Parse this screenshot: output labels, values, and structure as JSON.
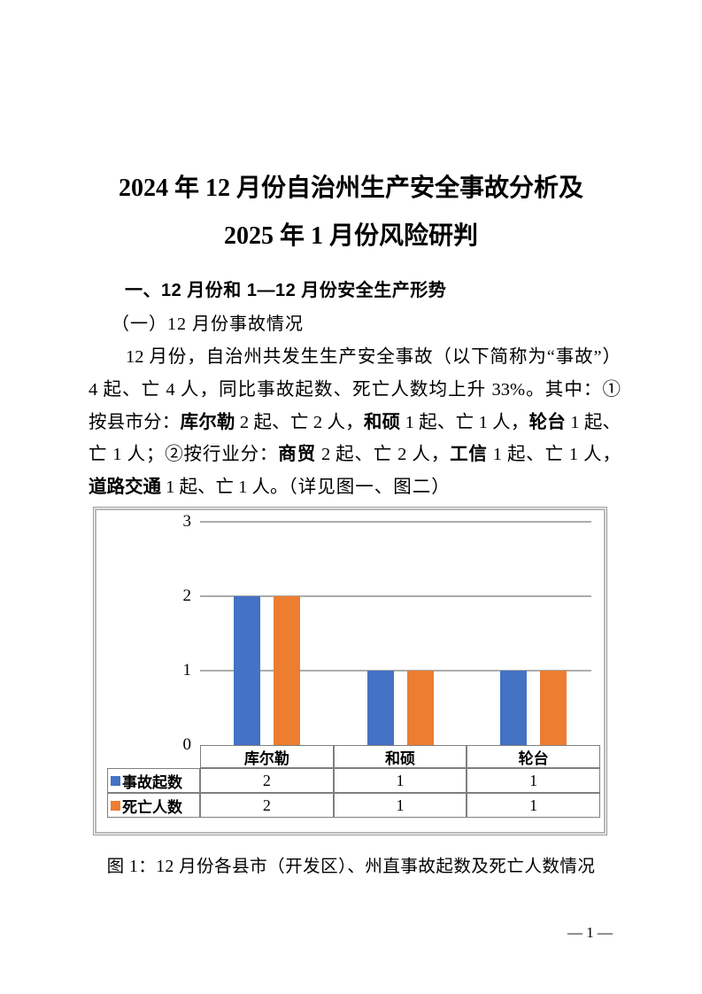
{
  "title": {
    "line1": "2024 年 12 月份自治州生产安全事故分析及",
    "line2": "2025 年 1 月份风险研判"
  },
  "sections": {
    "heading1": "一、12 月份和 1—12 月份安全生产形势",
    "heading2": "（一）12 月份事故情况"
  },
  "paragraph": {
    "lines": [
      {
        "indent": true,
        "full": true,
        "runs": [
          {
            "t": "12 月份，自治州共发生生产安全事故（以下简称为“事故”）"
          }
        ]
      },
      {
        "full": true,
        "runs": [
          {
            "t": "4 起、亡 4 人，同比事故起数、死亡人数均上升 33%。其中：①"
          }
        ]
      },
      {
        "full": true,
        "runs": [
          {
            "t": "按县市分："
          },
          {
            "t": "库尔勒",
            "b": true
          },
          {
            "t": " 2 起、亡 2 人，"
          },
          {
            "t": "和硕",
            "b": true
          },
          {
            "t": " 1 起、亡 1 人，"
          },
          {
            "t": "轮台",
            "b": true
          },
          {
            "t": " 1 起、"
          }
        ]
      },
      {
        "full": true,
        "runs": [
          {
            "t": "亡 1 人；②按行业分："
          },
          {
            "t": "商贸",
            "b": true
          },
          {
            "t": " 2 起、亡 2 人，"
          },
          {
            "t": "工信",
            "b": true
          },
          {
            "t": " 1 起、亡 1 人，"
          }
        ]
      },
      {
        "full": false,
        "runs": [
          {
            "t": "道路交通",
            "b": true
          },
          {
            "t": " 1 起、亡 1 人。"
          },
          {
            "t": "（详见图一、图二）",
            "k": true
          }
        ]
      }
    ]
  },
  "chart_data": {
    "type": "bar",
    "categories": [
      "库尔勒",
      "和硕",
      "轮台"
    ],
    "series": [
      {
        "name": "事故起数",
        "color": "#4472C4",
        "values": [
          2,
          1,
          1
        ]
      },
      {
        "name": "死亡人数",
        "color": "#ED7D31",
        "values": [
          2,
          1,
          1
        ]
      }
    ],
    "title": "",
    "xlabel": "",
    "ylabel": "",
    "ylim": [
      0,
      3
    ],
    "yticks": [
      3,
      2,
      1,
      0
    ],
    "grid": true,
    "legend_position": "data-table-left"
  },
  "caption": "图 1：12 月份各县市（开发区）、州直事故起数及死亡人数情况",
  "page": {
    "number_label": "— 1 —"
  },
  "colors": {
    "series_blue": "#4472C4",
    "series_orange": "#ED7D31",
    "gridline": "#acacac",
    "table_border": "#7f7f7f"
  }
}
